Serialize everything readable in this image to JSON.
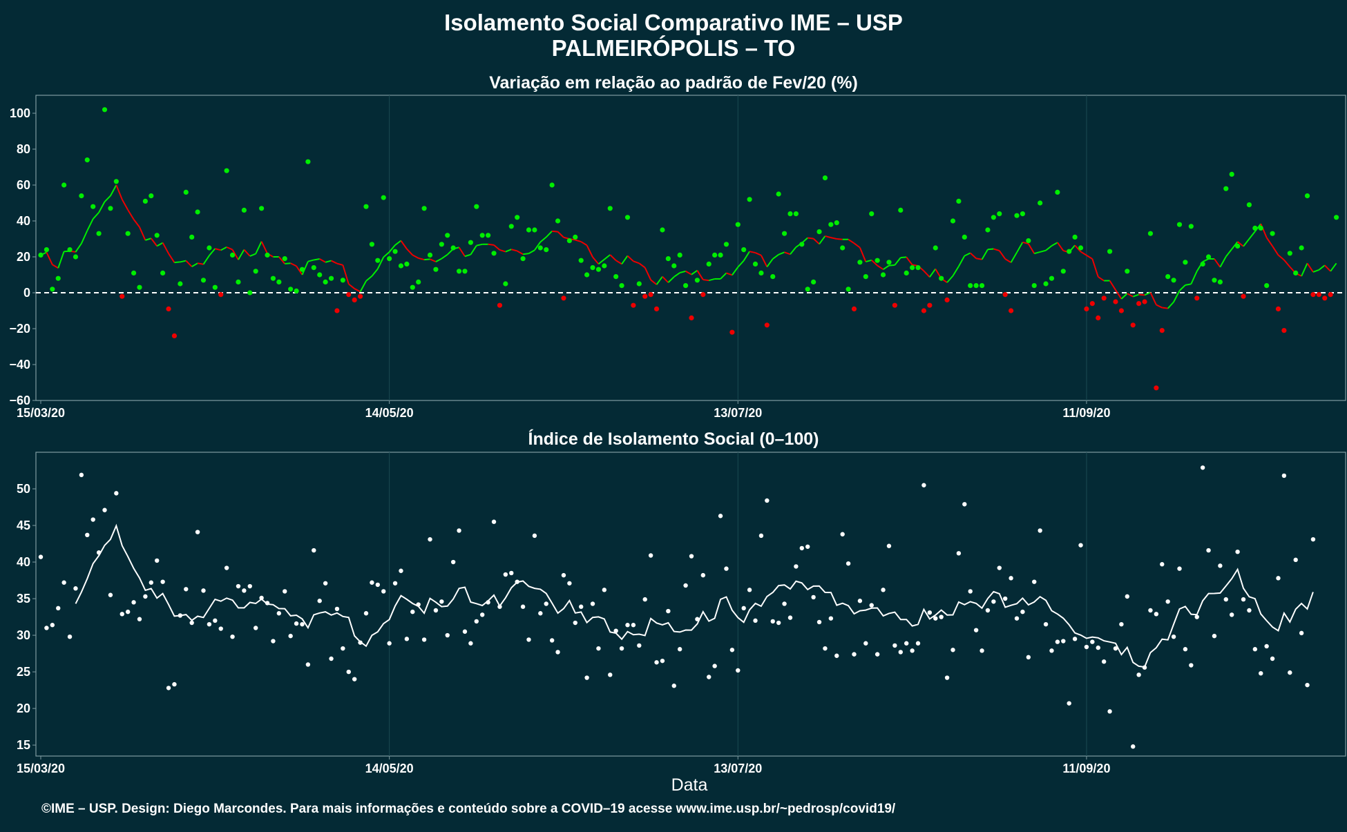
{
  "titles": {
    "main": "Isolamento Social Comparativo IME – USP",
    "sub": "PALMEIRÓPOLIS – TO"
  },
  "caption": "©IME – USP. Design: Diego Marcondes. Para mais informações e conteúdo sobre a COVID–19 acesse www.ime.usp.br/~pedrosp/covid19/",
  "colors": {
    "background": "#042a35",
    "positive": "#00ee00",
    "negative": "#ee0000",
    "index": "#ffffff",
    "grid": "#1b4a52",
    "frame": "#7f9ca2"
  },
  "chart_data": [
    {
      "type": "scatter",
      "title": "Variação em relação ao padrão de Fev/20 (%)",
      "xlabel": "",
      "ylabel": "",
      "x_start": "15/03/20",
      "x_end": "25/10/20",
      "xticks": [
        "15/03/20",
        "14/05/20",
        "13/07/20",
        "11/09/20"
      ],
      "ylim": [
        -60,
        110
      ],
      "yticks": [
        -60,
        -40,
        -20,
        0,
        20,
        40,
        60,
        80,
        100
      ],
      "yticklabels": [
        "−60",
        "−40",
        "−20",
        "0",
        "20",
        "40",
        "60",
        "80",
        "100"
      ],
      "reference_line": 0,
      "points_color_rule": "green if value >= 0, red if value < 0",
      "line": "7-day moving average",
      "values": [
        21,
        24,
        2,
        8,
        60,
        24,
        20,
        54,
        74,
        48,
        33,
        102,
        47,
        62,
        -2,
        33,
        11,
        3,
        51,
        54,
        32,
        11,
        -9,
        -24,
        5,
        56,
        31,
        45,
        7,
        25,
        3,
        -1,
        68,
        21,
        6,
        46,
        0,
        12,
        47,
        21,
        8,
        6,
        19,
        2,
        1,
        13,
        73,
        14,
        10,
        6,
        8,
        -10,
        7,
        -1,
        -4,
        -2,
        48,
        27,
        18,
        53,
        19,
        23,
        15,
        16,
        3,
        6,
        47,
        21,
        13,
        27,
        32,
        25,
        12,
        12,
        28,
        48,
        32,
        32,
        22,
        -7,
        5,
        37,
        42,
        19,
        35,
        35,
        25,
        24,
        60,
        40,
        -3,
        29,
        31,
        18,
        10,
        14,
        13,
        15,
        47,
        9,
        4,
        42,
        -7,
        5,
        -2,
        -1,
        -9,
        35,
        19,
        15,
        21,
        4,
        -14,
        7,
        -1,
        16,
        21,
        21,
        27,
        -22,
        38,
        24,
        52,
        16,
        11,
        -18,
        9,
        55,
        33,
        44,
        44,
        27,
        2,
        6,
        34,
        64,
        38,
        39,
        25,
        2,
        -9,
        17,
        9,
        44,
        18,
        10,
        17,
        -7,
        46,
        11,
        14,
        14,
        -10,
        -7,
        25,
        8,
        -4,
        40,
        51,
        31,
        4,
        4,
        4,
        35,
        42,
        44,
        -1,
        -10,
        43,
        44,
        29,
        4,
        50,
        5,
        8,
        56,
        12,
        23,
        31,
        25,
        -9,
        -6,
        -14,
        -3,
        23,
        -5,
        -10,
        12,
        -18,
        -6,
        -5,
        33,
        -53,
        -21,
        9,
        7,
        38,
        17,
        37,
        -3,
        16,
        20,
        7,
        6,
        58,
        66,
        26,
        -2,
        49,
        36,
        36,
        4,
        33,
        -9,
        -21,
        22,
        11,
        25,
        54,
        -1,
        -1,
        -3,
        -1,
        42
      ]
    },
    {
      "type": "scatter",
      "title": "Índice de Isolamento Social (0–100)",
      "xlabel": "Data",
      "ylabel": "",
      "x_start": "15/03/20",
      "x_end": "25/10/20",
      "xticks": [
        "15/03/20",
        "14/05/20",
        "13/07/20",
        "11/09/20"
      ],
      "ylim": [
        13.5,
        55
      ],
      "yticks": [
        15,
        20,
        25,
        30,
        35,
        40,
        45,
        50
      ],
      "line": "7-day moving average",
      "values": [
        40.7,
        31.0,
        31.4,
        33.7,
        37.2,
        29.8,
        36.4,
        51.9,
        43.7,
        45.8,
        41.3,
        47.1,
        35.5,
        49.4,
        32.9,
        33.2,
        34.5,
        32.2,
        35.3,
        37.2,
        40.2,
        37.3,
        22.8,
        23.3,
        32.7,
        36.3,
        31.7,
        44.1,
        36.1,
        31.5,
        32.0,
        30.9,
        39.2,
        29.8,
        36.7,
        36.1,
        36.7,
        31.0,
        35.1,
        34.4,
        29.2,
        33.0,
        36.0,
        29.9,
        31.6,
        31.5,
        26.0,
        41.6,
        34.7,
        37.1,
        26.8,
        33.6,
        28.2,
        25.0,
        24.0,
        29.0,
        33.0,
        37.2,
        36.9,
        36.0,
        28.9,
        37.1,
        38.8,
        29.5,
        33.2,
        34.2,
        29.4,
        43.1,
        33.4,
        34.6,
        30.0,
        40.0,
        44.3,
        30.5,
        28.9,
        31.9,
        32.8,
        34.5,
        45.5,
        33.9,
        38.3,
        38.5,
        37.3,
        33.9,
        29.4,
        43.6,
        33.0,
        34.3,
        29.3,
        27.7,
        38.2,
        37.1,
        31.7,
        33.9,
        24.2,
        34.3,
        28.2,
        36.2,
        24.6,
        30.6,
        28.2,
        31.4,
        31.4,
        28.6,
        34.9,
        40.9,
        26.3,
        26.5,
        33.3,
        23.1,
        28.1,
        36.8,
        40.8,
        32.2,
        38.2,
        24.3,
        25.8,
        46.3,
        39.1,
        28.0,
        25.2,
        33.7,
        36.2,
        32.0,
        43.6,
        48.4,
        31.9,
        31.7,
        34.3,
        32.4,
        39.4,
        41.9,
        42.1,
        35.2,
        31.8,
        28.2,
        32.3,
        27.2,
        43.8,
        39.8,
        27.4,
        34.7,
        28.9,
        34.1,
        27.4,
        36.2,
        42.2,
        28.6,
        27.7,
        28.9,
        27.9,
        28.9,
        50.5,
        33.1,
        32.3,
        32.5,
        24.2,
        28.0,
        41.2,
        47.9,
        36.0,
        30.7,
        27.9,
        33.4,
        34.6,
        39.2,
        35.0,
        37.8,
        32.3,
        33.2,
        27.0,
        37.3,
        44.3,
        31.5,
        27.9,
        29.1,
        29.2,
        20.7,
        29.5,
        42.3,
        28.4,
        29.1,
        28.3,
        26.4,
        19.6,
        28.2,
        31.5,
        35.3,
        14.8,
        24.6,
        25.6,
        33.4,
        32.9,
        39.7,
        34.6,
        29.8,
        39.1,
        28.1,
        25.9,
        32.5,
        52.9,
        41.6,
        29.9,
        39.5,
        34.9,
        32.8,
        41.4,
        34.9,
        33.4,
        28.1,
        24.8,
        28.5,
        26.8,
        37.8,
        51.8,
        24.9,
        40.3,
        30.3,
        23.2,
        43.1
      ]
    }
  ]
}
